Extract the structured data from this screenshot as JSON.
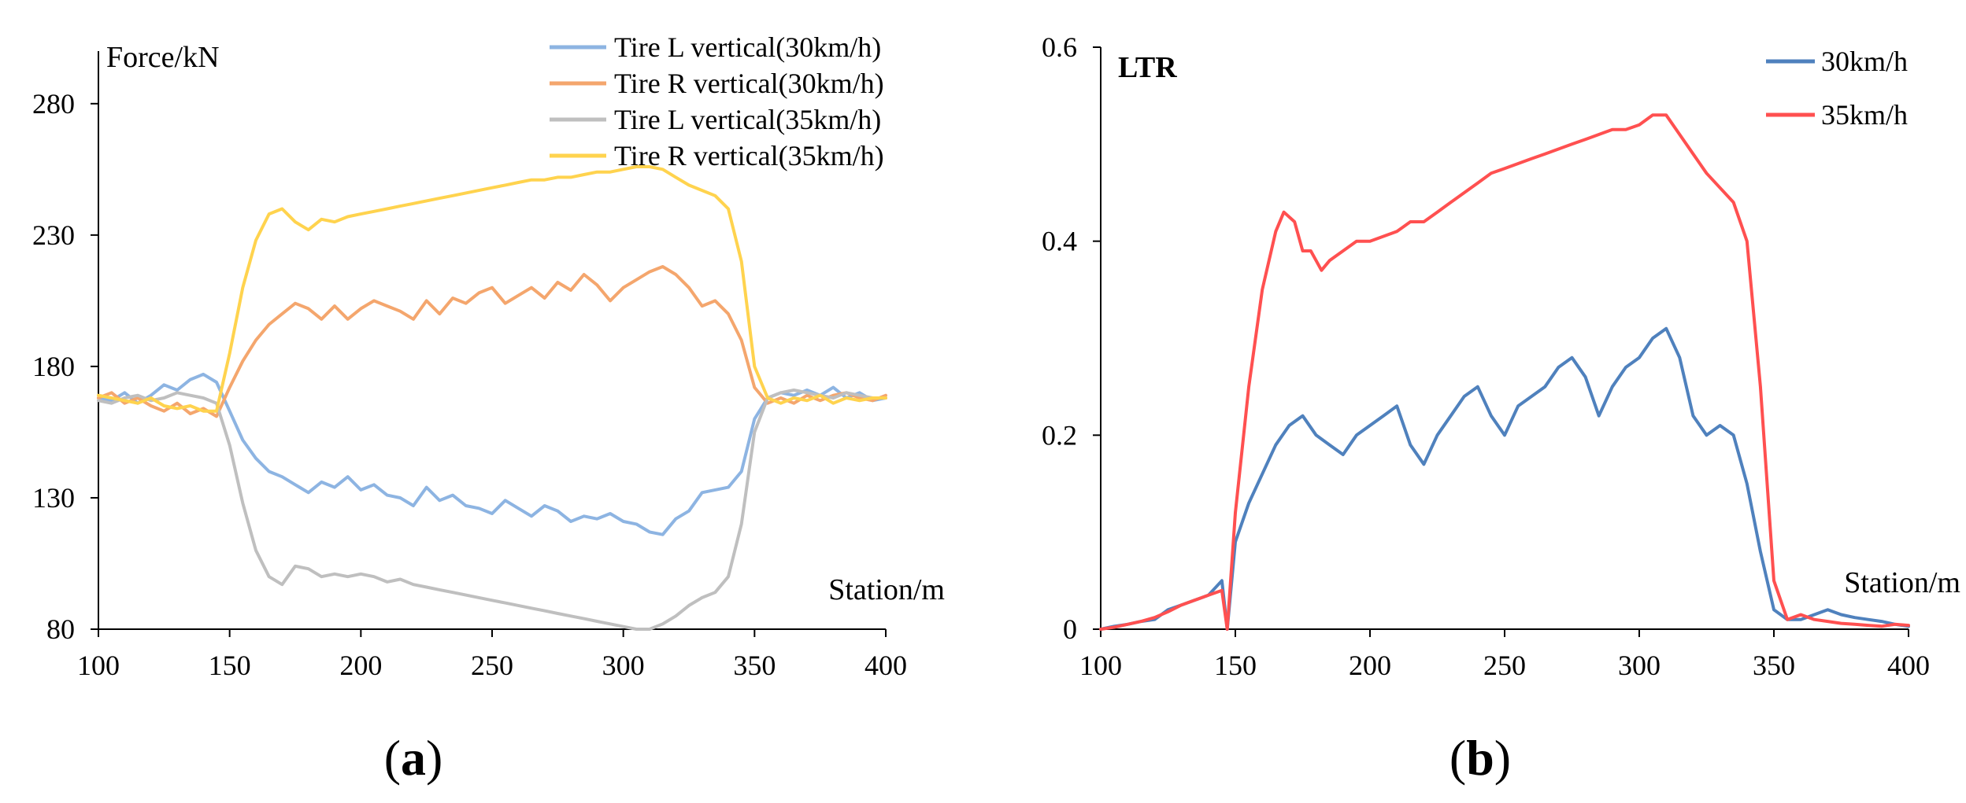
{
  "figure": {
    "panel_a_label": "a",
    "panel_b_label": "b"
  },
  "chart_data": [
    {
      "type": "line",
      "panel": "a",
      "title": "",
      "xlabel": "Station/m",
      "ylabel": "Force/kN",
      "xlim": [
        100,
        400
      ],
      "ylim": [
        80,
        300
      ],
      "xticks": [
        100,
        150,
        200,
        250,
        300,
        350,
        400
      ],
      "yticks": [
        80,
        130,
        180,
        230,
        280
      ],
      "grid": false,
      "legend_position": "top-right",
      "series": [
        {
          "name": "Tire L vertical(30km/h)",
          "color": "#8DB4E2",
          "x": [
            100,
            105,
            110,
            115,
            120,
            125,
            130,
            135,
            140,
            145,
            150,
            155,
            160,
            165,
            170,
            175,
            180,
            185,
            190,
            195,
            200,
            205,
            210,
            215,
            220,
            225,
            230,
            235,
            240,
            245,
            250,
            255,
            260,
            265,
            270,
            275,
            280,
            285,
            290,
            295,
            300,
            305,
            310,
            315,
            320,
            325,
            330,
            335,
            340,
            345,
            350,
            355,
            360,
            365,
            370,
            375,
            380,
            385,
            390,
            395,
            400
          ],
          "values": [
            168,
            167,
            170,
            166,
            169,
            173,
            171,
            175,
            177,
            174,
            163,
            152,
            145,
            140,
            138,
            135,
            132,
            136,
            134,
            138,
            133,
            135,
            131,
            130,
            127,
            134,
            129,
            131,
            127,
            126,
            124,
            129,
            126,
            123,
            127,
            125,
            121,
            123,
            122,
            124,
            121,
            120,
            117,
            116,
            122,
            125,
            132,
            133,
            134,
            140,
            160,
            168,
            170,
            169,
            171,
            169,
            172,
            168,
            170,
            167,
            168
          ]
        },
        {
          "name": "Tire R vertical(30km/h)",
          "color": "#F4A66D",
          "x": [
            100,
            105,
            110,
            115,
            120,
            125,
            130,
            135,
            140,
            145,
            150,
            155,
            160,
            165,
            170,
            175,
            180,
            185,
            190,
            195,
            200,
            205,
            210,
            215,
            220,
            225,
            230,
            235,
            240,
            245,
            250,
            255,
            260,
            265,
            270,
            275,
            280,
            285,
            290,
            295,
            300,
            305,
            310,
            315,
            320,
            325,
            330,
            335,
            340,
            345,
            350,
            355,
            360,
            365,
            370,
            375,
            380,
            385,
            390,
            395,
            400
          ],
          "values": [
            168,
            170,
            166,
            168,
            165,
            163,
            166,
            162,
            164,
            161,
            172,
            182,
            190,
            196,
            200,
            204,
            202,
            198,
            203,
            198,
            202,
            205,
            203,
            201,
            198,
            205,
            200,
            206,
            204,
            208,
            210,
            204,
            207,
            210,
            206,
            212,
            209,
            215,
            211,
            205,
            210,
            213,
            216,
            218,
            215,
            210,
            203,
            205,
            200,
            190,
            172,
            166,
            168,
            166,
            169,
            167,
            169,
            170,
            168,
            167,
            169
          ]
        },
        {
          "name": "Tire L vertical(35km/h)",
          "color": "#BFBFBF",
          "x": [
            100,
            105,
            110,
            115,
            120,
            125,
            130,
            135,
            140,
            145,
            150,
            155,
            160,
            165,
            170,
            175,
            180,
            185,
            190,
            195,
            200,
            205,
            210,
            215,
            220,
            225,
            230,
            235,
            240,
            245,
            250,
            255,
            260,
            265,
            270,
            275,
            280,
            285,
            290,
            295,
            300,
            305,
            310,
            315,
            320,
            325,
            330,
            335,
            340,
            345,
            350,
            355,
            360,
            365,
            370,
            375,
            380,
            385,
            390,
            395,
            400
          ],
          "values": [
            167,
            166,
            168,
            169,
            167,
            168,
            170,
            169,
            168,
            166,
            150,
            128,
            110,
            100,
            97,
            104,
            103,
            100,
            101,
            100,
            101,
            100,
            98,
            99,
            97,
            96,
            95,
            94,
            93,
            92,
            91,
            90,
            89,
            88,
            87,
            86,
            85,
            84,
            83,
            82,
            81,
            80,
            80,
            82,
            85,
            89,
            92,
            94,
            100,
            120,
            155,
            168,
            170,
            171,
            170,
            169,
            168,
            170,
            169,
            168,
            168
          ]
        },
        {
          "name": "Tire R vertical(35km/h)",
          "color": "#FFD34E",
          "x": [
            100,
            105,
            110,
            115,
            120,
            125,
            130,
            135,
            140,
            145,
            150,
            155,
            160,
            165,
            170,
            175,
            180,
            185,
            190,
            195,
            200,
            205,
            210,
            215,
            220,
            225,
            230,
            235,
            240,
            245,
            250,
            255,
            260,
            265,
            270,
            275,
            280,
            285,
            290,
            295,
            300,
            305,
            310,
            315,
            320,
            325,
            330,
            335,
            340,
            345,
            350,
            355,
            360,
            365,
            370,
            375,
            380,
            385,
            390,
            395,
            400
          ],
          "values": [
            169,
            168,
            167,
            166,
            168,
            165,
            164,
            165,
            163,
            163,
            185,
            210,
            228,
            238,
            240,
            235,
            232,
            236,
            235,
            237,
            238,
            239,
            240,
            241,
            242,
            243,
            244,
            245,
            246,
            247,
            248,
            249,
            250,
            251,
            251,
            252,
            252,
            253,
            254,
            254,
            255,
            256,
            256,
            255,
            252,
            249,
            247,
            245,
            240,
            220,
            180,
            168,
            166,
            168,
            167,
            169,
            166,
            168,
            167,
            168,
            168
          ]
        }
      ]
    },
    {
      "type": "line",
      "panel": "b",
      "title": "",
      "xlabel": "Station/m",
      "ylabel": "LTR",
      "xlim": [
        100,
        400
      ],
      "ylim": [
        0,
        0.6
      ],
      "xticks": [
        100,
        150,
        200,
        250,
        300,
        350,
        400
      ],
      "yticks": [
        0,
        0.2,
        0.4,
        0.6
      ],
      "grid": false,
      "legend_position": "top-right",
      "series": [
        {
          "name": "30km/h",
          "color": "#4F81BD",
          "x": [
            100,
            105,
            110,
            115,
            120,
            125,
            130,
            135,
            140,
            145,
            147,
            150,
            155,
            160,
            165,
            170,
            175,
            180,
            185,
            190,
            195,
            200,
            205,
            210,
            215,
            220,
            225,
            230,
            235,
            240,
            245,
            250,
            255,
            260,
            265,
            270,
            275,
            280,
            285,
            290,
            295,
            300,
            305,
            310,
            315,
            320,
            325,
            330,
            335,
            340,
            345,
            350,
            355,
            360,
            365,
            370,
            375,
            380,
            385,
            390,
            395,
            400
          ],
          "values": [
            0.0,
            0.003,
            0.005,
            0.008,
            0.01,
            0.02,
            0.025,
            0.03,
            0.035,
            0.05,
            0.0,
            0.09,
            0.13,
            0.16,
            0.19,
            0.21,
            0.22,
            0.2,
            0.19,
            0.18,
            0.2,
            0.21,
            0.22,
            0.23,
            0.19,
            0.17,
            0.2,
            0.22,
            0.24,
            0.25,
            0.22,
            0.2,
            0.23,
            0.24,
            0.25,
            0.27,
            0.28,
            0.26,
            0.22,
            0.25,
            0.27,
            0.28,
            0.3,
            0.31,
            0.28,
            0.22,
            0.2,
            0.21,
            0.2,
            0.15,
            0.08,
            0.02,
            0.01,
            0.01,
            0.015,
            0.02,
            0.015,
            0.012,
            0.01,
            0.008,
            0.005,
            0.003
          ]
        },
        {
          "name": "35km/h",
          "color": "#FF5050",
          "x": [
            100,
            105,
            110,
            115,
            120,
            125,
            130,
            135,
            140,
            145,
            147,
            150,
            155,
            160,
            165,
            168,
            172,
            175,
            178,
            180,
            182,
            185,
            190,
            195,
            200,
            205,
            210,
            215,
            220,
            225,
            230,
            235,
            240,
            245,
            250,
            255,
            260,
            265,
            270,
            275,
            280,
            285,
            290,
            295,
            300,
            305,
            310,
            315,
            320,
            325,
            330,
            335,
            340,
            345,
            350,
            355,
            360,
            365,
            370,
            375,
            380,
            385,
            390,
            395,
            400
          ],
          "values": [
            0.0,
            0.002,
            0.005,
            0.008,
            0.012,
            0.018,
            0.025,
            0.03,
            0.035,
            0.04,
            0.0,
            0.12,
            0.25,
            0.35,
            0.41,
            0.43,
            0.42,
            0.39,
            0.39,
            0.38,
            0.37,
            0.38,
            0.39,
            0.4,
            0.4,
            0.405,
            0.41,
            0.42,
            0.42,
            0.43,
            0.44,
            0.45,
            0.46,
            0.47,
            0.475,
            0.48,
            0.485,
            0.49,
            0.495,
            0.5,
            0.505,
            0.51,
            0.515,
            0.515,
            0.52,
            0.53,
            0.53,
            0.51,
            0.49,
            0.47,
            0.455,
            0.44,
            0.4,
            0.25,
            0.05,
            0.01,
            0.015,
            0.01,
            0.008,
            0.006,
            0.005,
            0.004,
            0.003,
            0.005,
            0.004
          ]
        }
      ]
    }
  ]
}
